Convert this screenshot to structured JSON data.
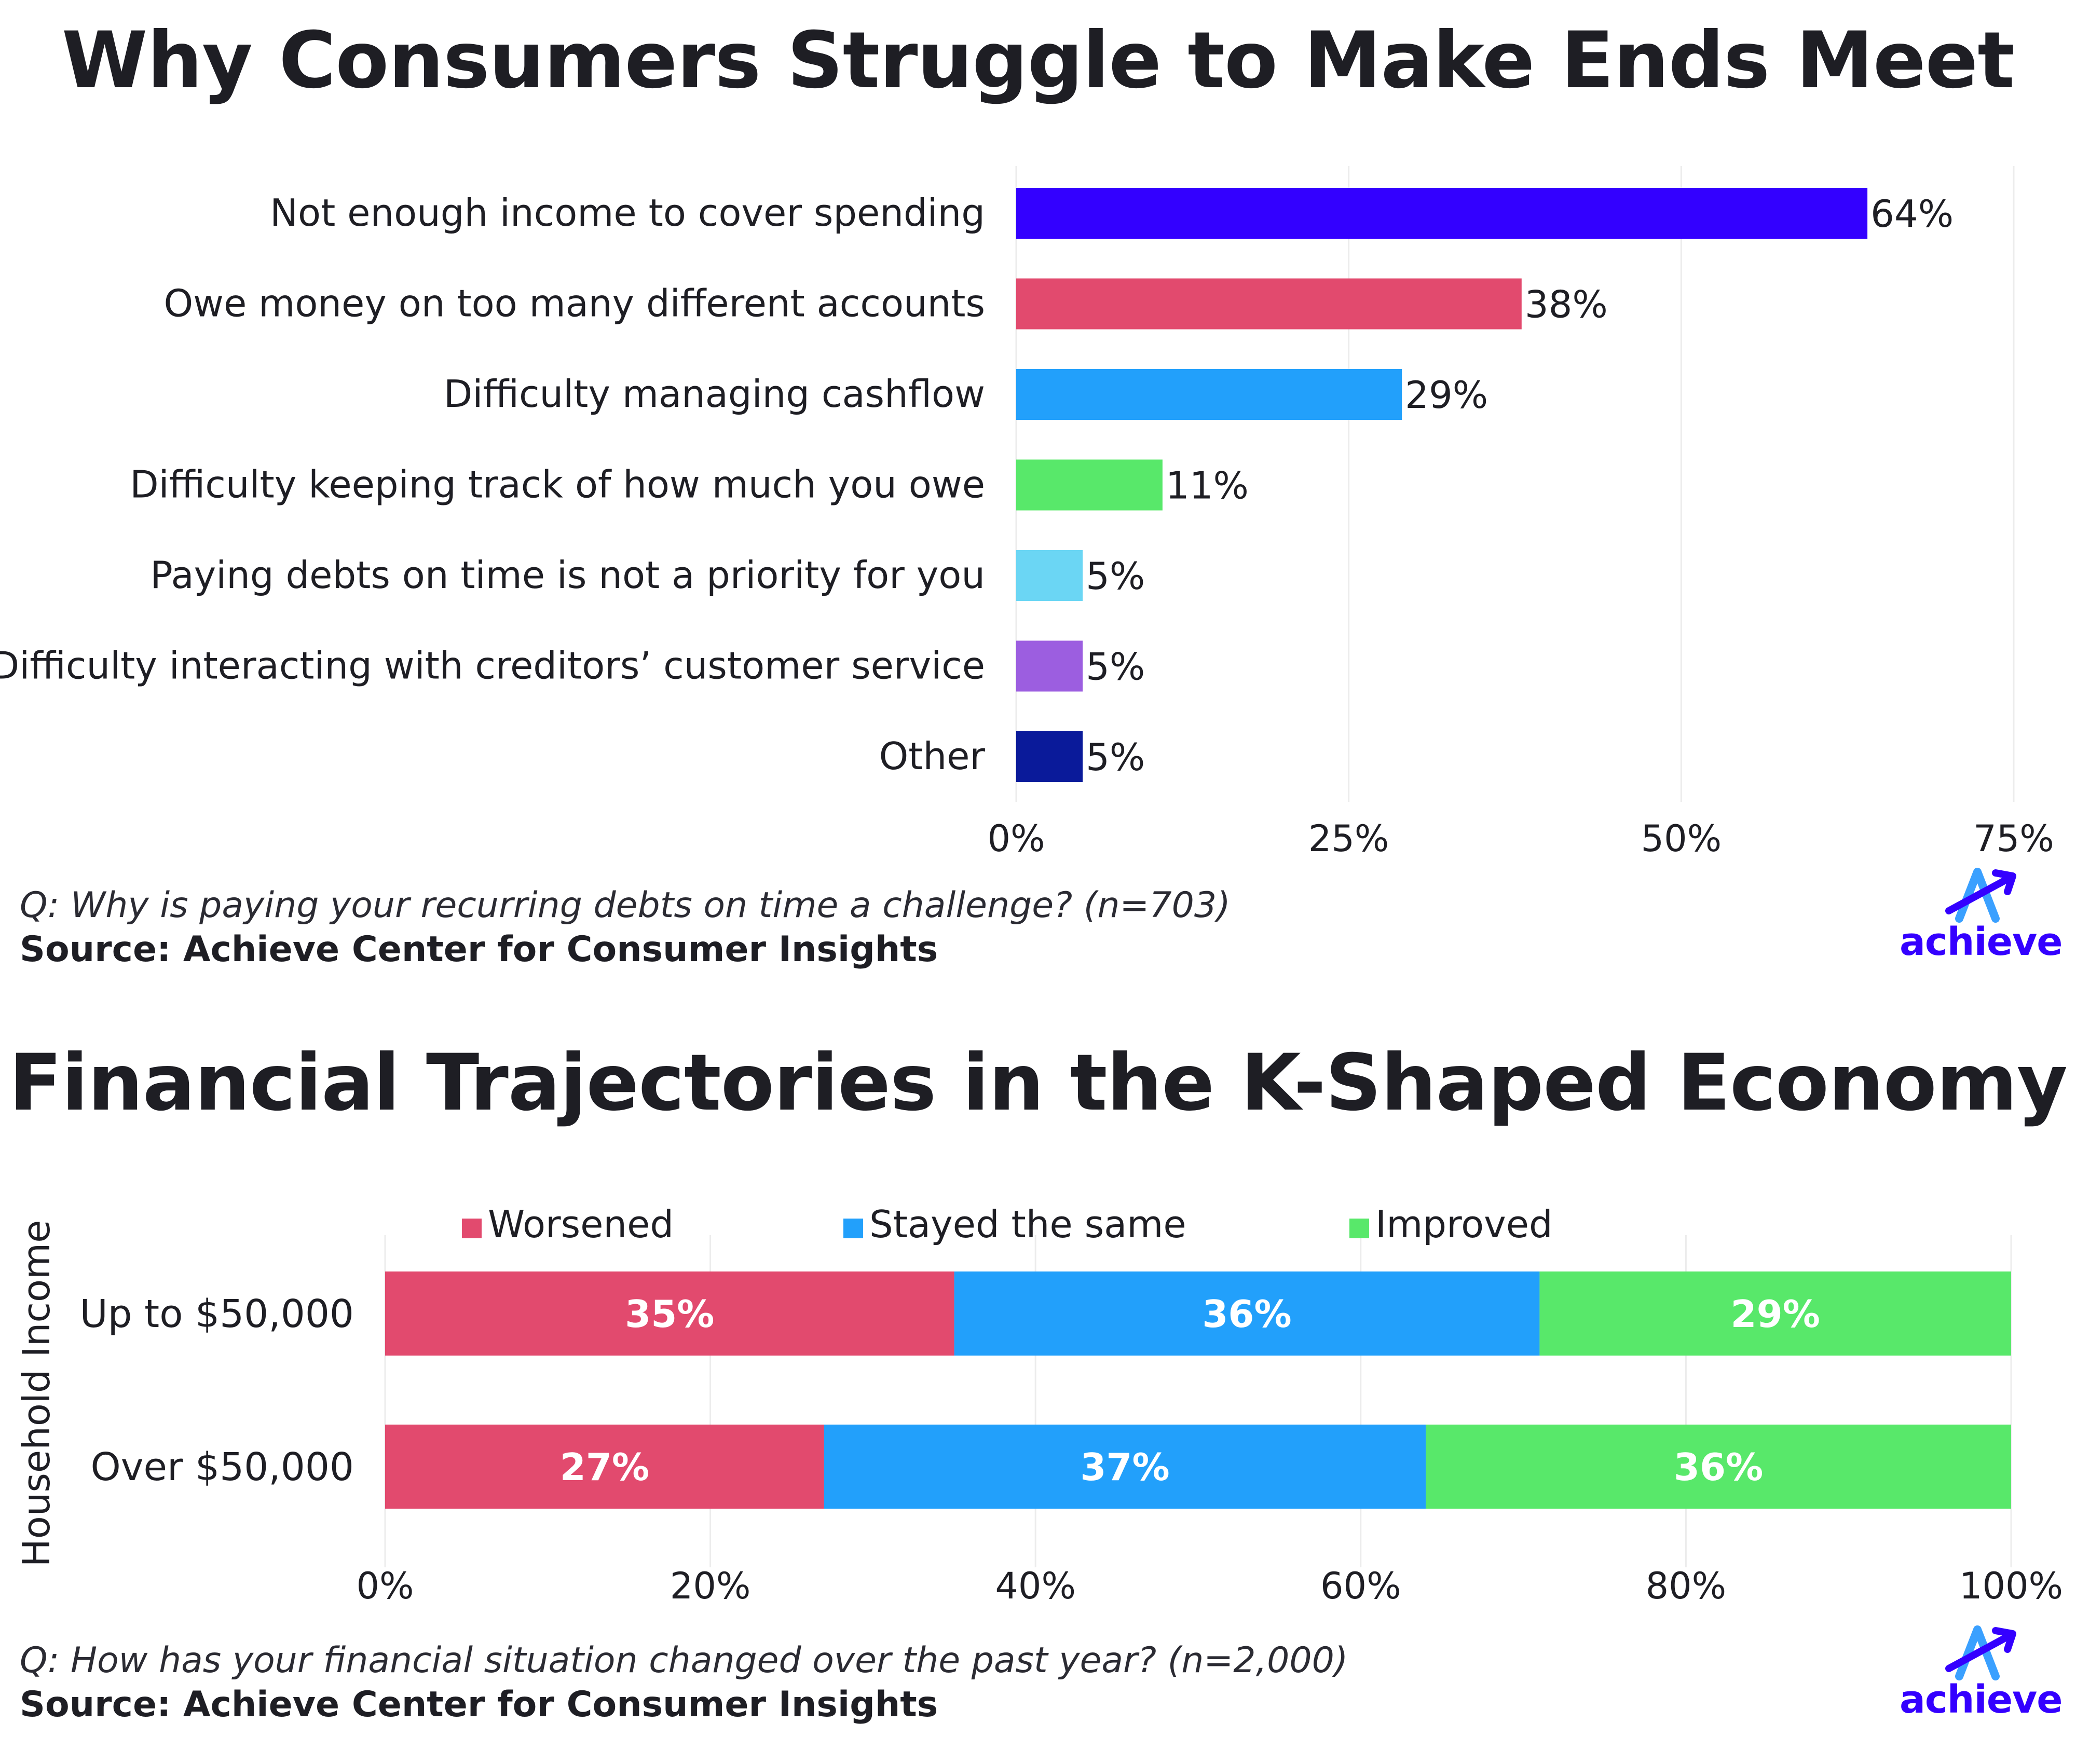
{
  "charts": [
    {
      "title": "Why Consumers Struggle to Make Ends Meet",
      "question": "Q: Why is paying your recurring debts on time a challenge? (n=703)",
      "source": "Source: Achieve Center for Consumer Insights",
      "logo_text": "achieve"
    },
    {
      "title": "Financial Trajectories in the K-Shaped Economy",
      "question": "Q: How has your financial situation changed over the past year? (n=2,000)",
      "source": "Source: Achieve Center for Consumer Insights",
      "logo_text": "achieve"
    }
  ],
  "chart_data": [
    {
      "type": "bar",
      "orientation": "horizontal",
      "title": "Why Consumers Struggle to Make Ends Meet",
      "categories": [
        "Not enough income to cover spending",
        "Owe money on too many different accounts",
        "Difficulty managing cashflow",
        "Difficulty keeping track of how much you owe",
        "Paying debts on time is not a priority for you",
        "Difficulty interacting with creditors’ customer service",
        "Other"
      ],
      "values": [
        64,
        38,
        29,
        11,
        5,
        5,
        5
      ],
      "labels": [
        "64%",
        "38%",
        "29%",
        "11%",
        "5%",
        "5%",
        "5%"
      ],
      "colors": [
        "#3300ff",
        "#e24a6e",
        "#22a0fb",
        "#58e86a",
        "#6bd6f4",
        "#9c5ee0",
        "#0a1a9a"
      ],
      "xlim": [
        0,
        75
      ],
      "xticks": [
        "0%",
        "25%",
        "50%",
        "75%"
      ],
      "grid": true
    },
    {
      "type": "bar",
      "orientation": "horizontal",
      "stacked": true,
      "title": "Financial Trajectories in the K-Shaped Economy",
      "ylabel": "Household Income",
      "categories": [
        "Up to $50,000",
        "Over $50,000"
      ],
      "series": [
        {
          "name": "Worsened",
          "values": [
            35,
            27
          ],
          "labels": [
            "35%",
            "27%"
          ],
          "color": "#e24a6e"
        },
        {
          "name": "Stayed the same",
          "values": [
            36,
            37
          ],
          "labels": [
            "36%",
            "37%"
          ],
          "color": "#22a0fb"
        },
        {
          "name": "Improved",
          "values": [
            29,
            36
          ],
          "labels": [
            "29%",
            "36%"
          ],
          "color": "#58e86a"
        }
      ],
      "xlim": [
        0,
        100
      ],
      "xticks": [
        "0%",
        "20%",
        "40%",
        "60%",
        "80%",
        "100%"
      ],
      "legend_position": "top",
      "grid": true
    }
  ]
}
